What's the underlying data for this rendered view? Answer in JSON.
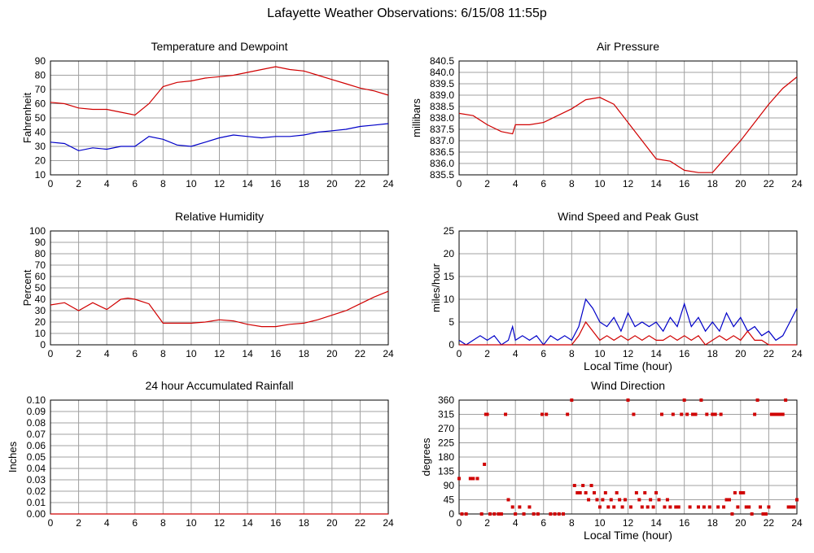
{
  "page": {
    "title": "Lafayette Weather Observations: 6/15/08 11:55p"
  },
  "colors": {
    "red": "#d00000",
    "blue": "#0000c8",
    "grid": "#a0a0a0",
    "frame": "#000000"
  },
  "chart_data": [
    {
      "id": "temperature",
      "type": "line",
      "title": "Temperature and Dewpoint",
      "xlabel": "",
      "ylabel": "Fahrenheit",
      "xlim": [
        0,
        24
      ],
      "ylim": [
        10,
        90
      ],
      "xticks": [
        0,
        2,
        4,
        6,
        8,
        10,
        12,
        14,
        16,
        18,
        20,
        22,
        24
      ],
      "yticks": [
        10,
        20,
        30,
        40,
        50,
        60,
        70,
        80,
        90
      ],
      "grid": true,
      "series": [
        {
          "color": "#d00000",
          "style": "line",
          "x": [
            0,
            1,
            2,
            3,
            4,
            5,
            6,
            7,
            8,
            9,
            10,
            11,
            12,
            13,
            14,
            15,
            16,
            17,
            18,
            19,
            20,
            21,
            22,
            23,
            24
          ],
          "y": [
            61,
            60,
            57,
            56,
            56,
            54,
            52,
            60,
            72,
            75,
            76,
            78,
            79,
            80,
            82,
            84,
            86,
            84,
            83,
            80,
            77,
            74,
            71,
            69,
            66
          ]
        },
        {
          "color": "#0000c8",
          "style": "line",
          "x": [
            0,
            1,
            2,
            3,
            4,
            5,
            6,
            7,
            8,
            9,
            10,
            11,
            12,
            13,
            14,
            15,
            16,
            17,
            18,
            19,
            20,
            21,
            22,
            23,
            24
          ],
          "y": [
            33,
            32,
            27,
            29,
            28,
            30,
            30,
            37,
            35,
            31,
            30,
            33,
            36,
            38,
            37,
            36,
            37,
            37,
            38,
            40,
            41,
            42,
            44,
            45,
            46
          ]
        }
      ]
    },
    {
      "id": "pressure",
      "type": "line",
      "title": "Air Pressure",
      "xlabel": "",
      "ylabel": "millibars",
      "xlim": [
        0,
        24
      ],
      "ylim": [
        835.5,
        840.5
      ],
      "xticks": [
        0,
        2,
        4,
        6,
        8,
        10,
        12,
        14,
        16,
        18,
        20,
        22,
        24
      ],
      "yticks": [
        835.5,
        836.0,
        836.5,
        837.0,
        837.5,
        838.0,
        838.5,
        839.0,
        839.5,
        840.0,
        840.5
      ],
      "yticklabels": [
        "835.5",
        "836.0",
        "836.5",
        "837.0",
        "837.5",
        "838.0",
        "838.5",
        "839.0",
        "839.5",
        "840.0",
        "840.5"
      ],
      "grid": true,
      "series": [
        {
          "color": "#d00000",
          "style": "line",
          "x": [
            0,
            1,
            2,
            3,
            3.8,
            4,
            5,
            6,
            7,
            8,
            9,
            10,
            11,
            12,
            13,
            14,
            15,
            16,
            17,
            18,
            19,
            20,
            21,
            22,
            23,
            24
          ],
          "y": [
            838.2,
            838.1,
            837.7,
            837.4,
            837.3,
            837.7,
            837.7,
            837.8,
            838.1,
            838.4,
            838.8,
            838.9,
            838.6,
            837.8,
            837.0,
            836.2,
            836.1,
            835.7,
            835.6,
            835.6,
            836.3,
            837.0,
            837.8,
            838.6,
            839.3,
            839.8
          ]
        }
      ]
    },
    {
      "id": "humidity",
      "type": "line",
      "title": "Relative Humidity",
      "xlabel": "",
      "ylabel": "Percent",
      "xlim": [
        0,
        24
      ],
      "ylim": [
        0,
        100
      ],
      "xticks": [
        0,
        2,
        4,
        6,
        8,
        10,
        12,
        14,
        16,
        18,
        20,
        22,
        24
      ],
      "yticks": [
        0,
        10,
        20,
        30,
        40,
        50,
        60,
        70,
        80,
        90,
        100
      ],
      "grid": true,
      "series": [
        {
          "color": "#d00000",
          "style": "line",
          "x": [
            0,
            1,
            2,
            3,
            4,
            5,
            5.5,
            6,
            7,
            8,
            9,
            10,
            11,
            12,
            13,
            14,
            15,
            16,
            17,
            18,
            19,
            20,
            21,
            22,
            23,
            24
          ],
          "y": [
            35,
            37,
            30,
            37,
            31,
            40,
            41,
            40,
            36,
            19,
            19,
            19,
            20,
            22,
            21,
            18,
            16,
            16,
            18,
            19,
            22,
            26,
            30,
            36,
            42,
            47
          ]
        }
      ]
    },
    {
      "id": "wind-speed",
      "type": "line",
      "title": "Wind Speed and Peak Gust",
      "xlabel": "Local Time (hour)",
      "ylabel": "miles/hour",
      "xlim": [
        0,
        24
      ],
      "ylim": [
        0,
        25
      ],
      "xticks": [
        0,
        2,
        4,
        6,
        8,
        10,
        12,
        14,
        16,
        18,
        20,
        22,
        24
      ],
      "yticks": [
        0,
        5,
        10,
        15,
        20,
        25
      ],
      "grid": true,
      "series": [
        {
          "color": "#0000c8",
          "style": "line",
          "x": [
            0,
            0.5,
            1,
            1.5,
            2,
            2.5,
            3,
            3.5,
            3.8,
            4,
            4.5,
            5,
            5.5,
            6,
            6.5,
            7,
            7.5,
            8,
            8.5,
            9,
            9.5,
            10,
            10.5,
            11,
            11.5,
            12,
            12.5,
            13,
            13.5,
            14,
            14.5,
            15,
            15.5,
            16,
            16.5,
            17,
            17.5,
            18,
            18.5,
            19,
            19.5,
            20,
            20.5,
            21,
            21.5,
            22,
            22.5,
            23,
            23.5,
            24
          ],
          "y": [
            1,
            0,
            1,
            2,
            1,
            2,
            0,
            1,
            4,
            1,
            2,
            1,
            2,
            0,
            2,
            1,
            2,
            1,
            4,
            10,
            8,
            5,
            4,
            6,
            3,
            7,
            4,
            5,
            4,
            5,
            3,
            6,
            4,
            9,
            4,
            6,
            3,
            5,
            3,
            7,
            4,
            6,
            3,
            4,
            2,
            3,
            1,
            2,
            5,
            8
          ]
        },
        {
          "color": "#d00000",
          "style": "line",
          "x": [
            0,
            1,
            2,
            3,
            4,
            5,
            6,
            7,
            8,
            8.5,
            9,
            9.5,
            10,
            10.5,
            11,
            11.5,
            12,
            12.5,
            13,
            13.5,
            14,
            14.5,
            15,
            15.5,
            16,
            16.5,
            17,
            17.5,
            18,
            18.5,
            19,
            19.5,
            20,
            20.5,
            21,
            21.5,
            22,
            23,
            24
          ],
          "y": [
            0,
            0,
            0,
            0,
            0,
            0,
            0,
            0,
            0,
            2,
            5,
            3,
            1,
            2,
            1,
            2,
            1,
            2,
            1,
            2,
            1,
            1,
            2,
            1,
            2,
            1,
            2,
            0,
            1,
            2,
            1,
            2,
            1,
            3,
            1,
            1,
            0,
            0,
            0
          ]
        }
      ]
    },
    {
      "id": "rainfall",
      "type": "line",
      "title": "24 hour Accumulated Rainfall",
      "xlabel": "",
      "ylabel": "Inches",
      "xlim": [
        0,
        24
      ],
      "ylim": [
        0,
        0.1
      ],
      "xticks": [
        0,
        2,
        4,
        6,
        8,
        10,
        12,
        14,
        16,
        18,
        20,
        22,
        24
      ],
      "yticks": [
        0,
        0.01,
        0.02,
        0.03,
        0.04,
        0.05,
        0.06,
        0.07,
        0.08,
        0.09,
        0.1
      ],
      "yticklabels": [
        "0.00",
        "0.01",
        "0.02",
        "0.03",
        "0.04",
        "0.05",
        "0.06",
        "0.07",
        "0.08",
        "0.09",
        "0.10"
      ],
      "grid": true,
      "series": [
        {
          "color": "#d00000",
          "style": "line",
          "x": [
            0,
            24
          ],
          "y": [
            0,
            0
          ]
        }
      ]
    },
    {
      "id": "wind-direction",
      "type": "scatter",
      "title": "Wind Direction",
      "xlabel": "Local Time (hour)",
      "ylabel": "degrees",
      "xlim": [
        0,
        24
      ],
      "ylim": [
        0,
        360
      ],
      "xticks": [
        0,
        2,
        4,
        6,
        8,
        10,
        12,
        14,
        16,
        18,
        20,
        22,
        24
      ],
      "yticks": [
        0,
        45,
        90,
        135,
        180,
        225,
        270,
        315,
        360
      ],
      "grid": true,
      "series": [
        {
          "color": "#d00000",
          "style": "points",
          "x": [
            0.0,
            0.2,
            0.5,
            0.8,
            1.0,
            1.3,
            1.6,
            1.8,
            1.9,
            2.0,
            2.2,
            2.5,
            2.8,
            3.0,
            3.3,
            3.5,
            3.8,
            4.0,
            4.3,
            4.6,
            5.0,
            5.3,
            5.6,
            5.9,
            6.2,
            6.5,
            6.8,
            7.1,
            7.4,
            7.7,
            8.0,
            8.2,
            8.4,
            8.6,
            8.8,
            9.0,
            9.2,
            9.4,
            9.6,
            9.8,
            10.0,
            10.2,
            10.4,
            10.6,
            10.8,
            11.0,
            11.2,
            11.4,
            11.6,
            11.8,
            12.0,
            12.2,
            12.4,
            12.6,
            12.8,
            13.0,
            13.2,
            13.4,
            13.6,
            13.8,
            14.0,
            14.2,
            14.4,
            14.6,
            14.8,
            15.0,
            15.2,
            15.4,
            15.6,
            15.8,
            16.0,
            16.2,
            16.4,
            16.6,
            16.8,
            17.0,
            17.2,
            17.4,
            17.6,
            17.8,
            18.0,
            18.2,
            18.4,
            18.6,
            18.8,
            19.0,
            19.2,
            19.4,
            19.6,
            19.8,
            20.0,
            20.2,
            20.4,
            20.6,
            20.8,
            21.0,
            21.2,
            21.4,
            21.6,
            21.8,
            22.0,
            22.2,
            22.4,
            22.6,
            22.8,
            23.0,
            23.2,
            23.4,
            23.6,
            23.8,
            24.0
          ],
          "y": [
            112,
            0,
            0,
            112,
            112,
            112,
            0,
            157,
            315,
            315,
            0,
            0,
            0,
            0,
            315,
            45,
            22,
            0,
            22,
            0,
            22,
            0,
            0,
            315,
            315,
            0,
            0,
            0,
            0,
            315,
            360,
            90,
            67,
            67,
            90,
            67,
            45,
            90,
            67,
            45,
            22,
            45,
            67,
            22,
            45,
            22,
            67,
            45,
            22,
            45,
            360,
            22,
            315,
            67,
            45,
            22,
            67,
            22,
            45,
            22,
            67,
            45,
            315,
            22,
            45,
            22,
            315,
            22,
            22,
            315,
            360,
            315,
            22,
            315,
            315,
            22,
            360,
            22,
            315,
            22,
            315,
            315,
            22,
            315,
            22,
            45,
            45,
            0,
            67,
            22,
            67,
            67,
            22,
            22,
            0,
            315,
            360,
            22,
            0,
            0,
            22,
            315,
            315,
            315,
            315,
            315,
            360,
            22,
            22,
            22,
            45
          ]
        }
      ]
    }
  ]
}
